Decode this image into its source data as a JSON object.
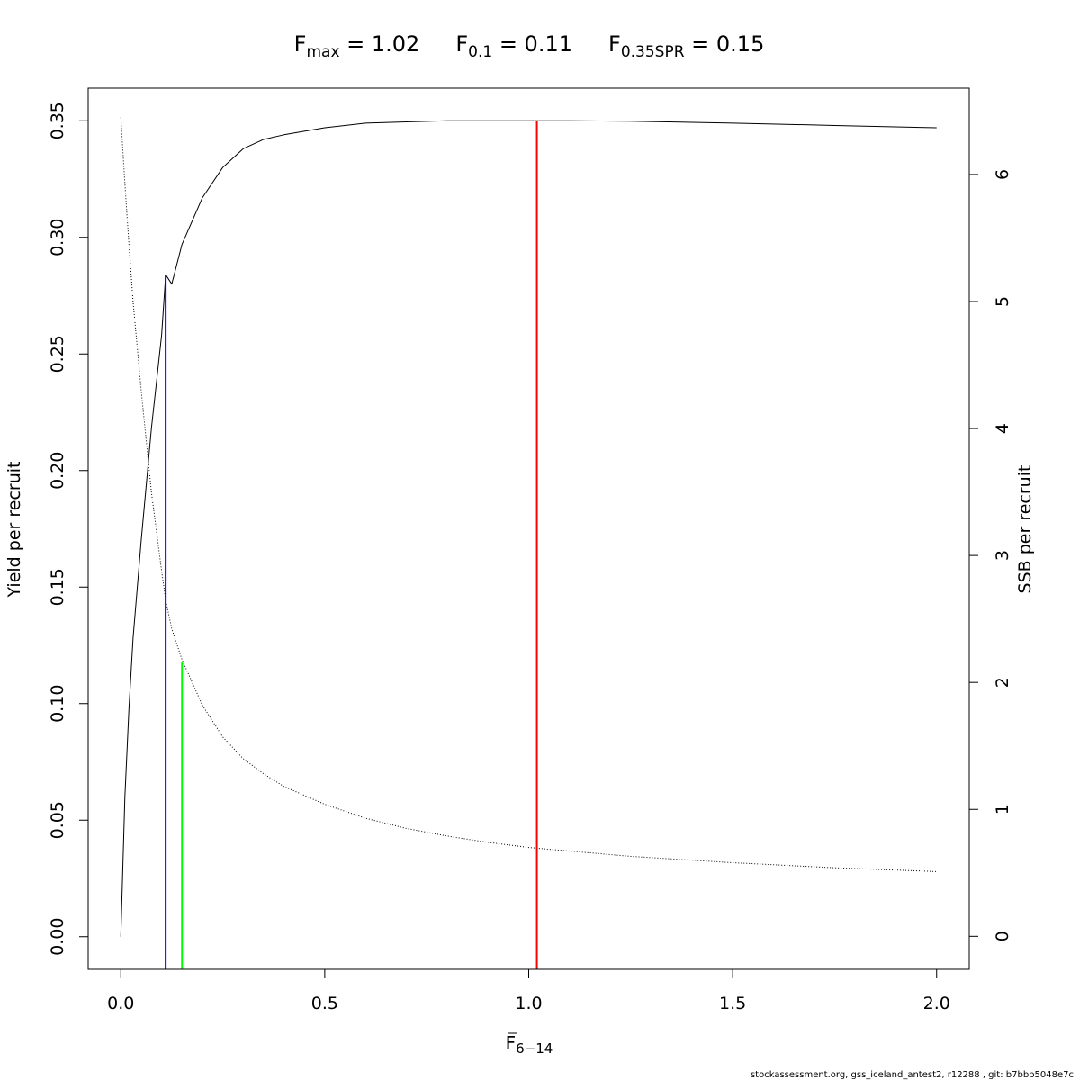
{
  "chart_data": {
    "type": "line",
    "title": {
      "parts": [
        {
          "main": "F",
          "sub": "max",
          "eq": " = 1.02"
        },
        {
          "main": "F",
          "sub": "0.1",
          "eq": " = 0.11"
        },
        {
          "main": "F",
          "sub": "0.35SPR",
          "eq": " = 0.15"
        }
      ]
    },
    "xlabel": {
      "main": "F",
      "sub": "6−14"
    },
    "ylabel_left": "Yield per recruit",
    "ylabel_right": "SSB per recruit",
    "xlim": [
      -0.08,
      2.08
    ],
    "ylim_left": [
      -0.014,
      0.364
    ],
    "ylim_right": [
      -0.26,
      6.68
    ],
    "x_ticks": [
      {
        "value": 0.0,
        "label": "0.0"
      },
      {
        "value": 0.5,
        "label": "0.5"
      },
      {
        "value": 1.0,
        "label": "1.0"
      },
      {
        "value": 1.5,
        "label": "1.5"
      },
      {
        "value": 2.0,
        "label": "2.0"
      }
    ],
    "y_left_ticks": [
      {
        "value": 0.0,
        "label": "0.00"
      },
      {
        "value": 0.05,
        "label": "0.05"
      },
      {
        "value": 0.1,
        "label": "0.10"
      },
      {
        "value": 0.15,
        "label": "0.15"
      },
      {
        "value": 0.2,
        "label": "0.20"
      },
      {
        "value": 0.25,
        "label": "0.25"
      },
      {
        "value": 0.3,
        "label": "0.30"
      },
      {
        "value": 0.35,
        "label": "0.35"
      }
    ],
    "y_right_ticks": [
      {
        "value": 0,
        "label": "0"
      },
      {
        "value": 1,
        "label": "1"
      },
      {
        "value": 2,
        "label": "2"
      },
      {
        "value": 3,
        "label": "3"
      },
      {
        "value": 4,
        "label": "4"
      },
      {
        "value": 5,
        "label": "5"
      },
      {
        "value": 6,
        "label": "6"
      }
    ],
    "series": [
      {
        "axis": "left",
        "style": "solid",
        "color": "#000000",
        "points": [
          [
            0.0,
            0.0
          ],
          [
            0.01,
            0.06
          ],
          [
            0.02,
            0.098
          ],
          [
            0.03,
            0.128
          ],
          [
            0.05,
            0.17
          ],
          [
            0.075,
            0.218
          ],
          [
            0.1,
            0.258
          ],
          [
            0.11,
            0.284
          ],
          [
            0.125,
            0.28
          ],
          [
            0.15,
            0.297
          ],
          [
            0.2,
            0.317
          ],
          [
            0.25,
            0.33
          ],
          [
            0.3,
            0.338
          ],
          [
            0.35,
            0.342
          ],
          [
            0.4,
            0.344
          ],
          [
            0.5,
            0.347
          ],
          [
            0.6,
            0.349
          ],
          [
            0.7,
            0.3495
          ],
          [
            0.8,
            0.35
          ],
          [
            0.9,
            0.35
          ],
          [
            1.0,
            0.35
          ],
          [
            1.1,
            0.35
          ],
          [
            1.25,
            0.3498
          ],
          [
            1.5,
            0.349
          ],
          [
            1.75,
            0.348
          ],
          [
            2.0,
            0.347
          ]
        ]
      },
      {
        "axis": "right",
        "style": "dotted",
        "color": "#000000",
        "points": [
          [
            0.0,
            6.45
          ],
          [
            0.01,
            5.93
          ],
          [
            0.02,
            5.45
          ],
          [
            0.03,
            5.0
          ],
          [
            0.05,
            4.3
          ],
          [
            0.075,
            3.5
          ],
          [
            0.1,
            2.88
          ],
          [
            0.11,
            2.65
          ],
          [
            0.125,
            2.42
          ],
          [
            0.15,
            2.18
          ],
          [
            0.2,
            1.82
          ],
          [
            0.25,
            1.57
          ],
          [
            0.3,
            1.4
          ],
          [
            0.35,
            1.28
          ],
          [
            0.4,
            1.18
          ],
          [
            0.5,
            1.04
          ],
          [
            0.6,
            0.93
          ],
          [
            0.7,
            0.85
          ],
          [
            0.8,
            0.79
          ],
          [
            0.9,
            0.74
          ],
          [
            1.0,
            0.7
          ],
          [
            1.25,
            0.63
          ],
          [
            1.5,
            0.58
          ],
          [
            1.75,
            0.54
          ],
          [
            2.0,
            0.51
          ]
        ]
      }
    ],
    "reference_lines": [
      {
        "name": "Fmax",
        "x": 1.02,
        "y_top": 0.35,
        "color": "#ff0000"
      },
      {
        "name": "F0.1",
        "x": 0.11,
        "y_top": 0.284,
        "color": "#0000ff"
      },
      {
        "name": "F0.35SPR",
        "x": 0.15,
        "y_top": 0.118,
        "color": "#00ff00"
      }
    ],
    "grid": false,
    "legend": "none"
  },
  "footer_text": "stockassessment.org, gss_iceland_antest2, r12288 , git: b7bbb5048e7c"
}
